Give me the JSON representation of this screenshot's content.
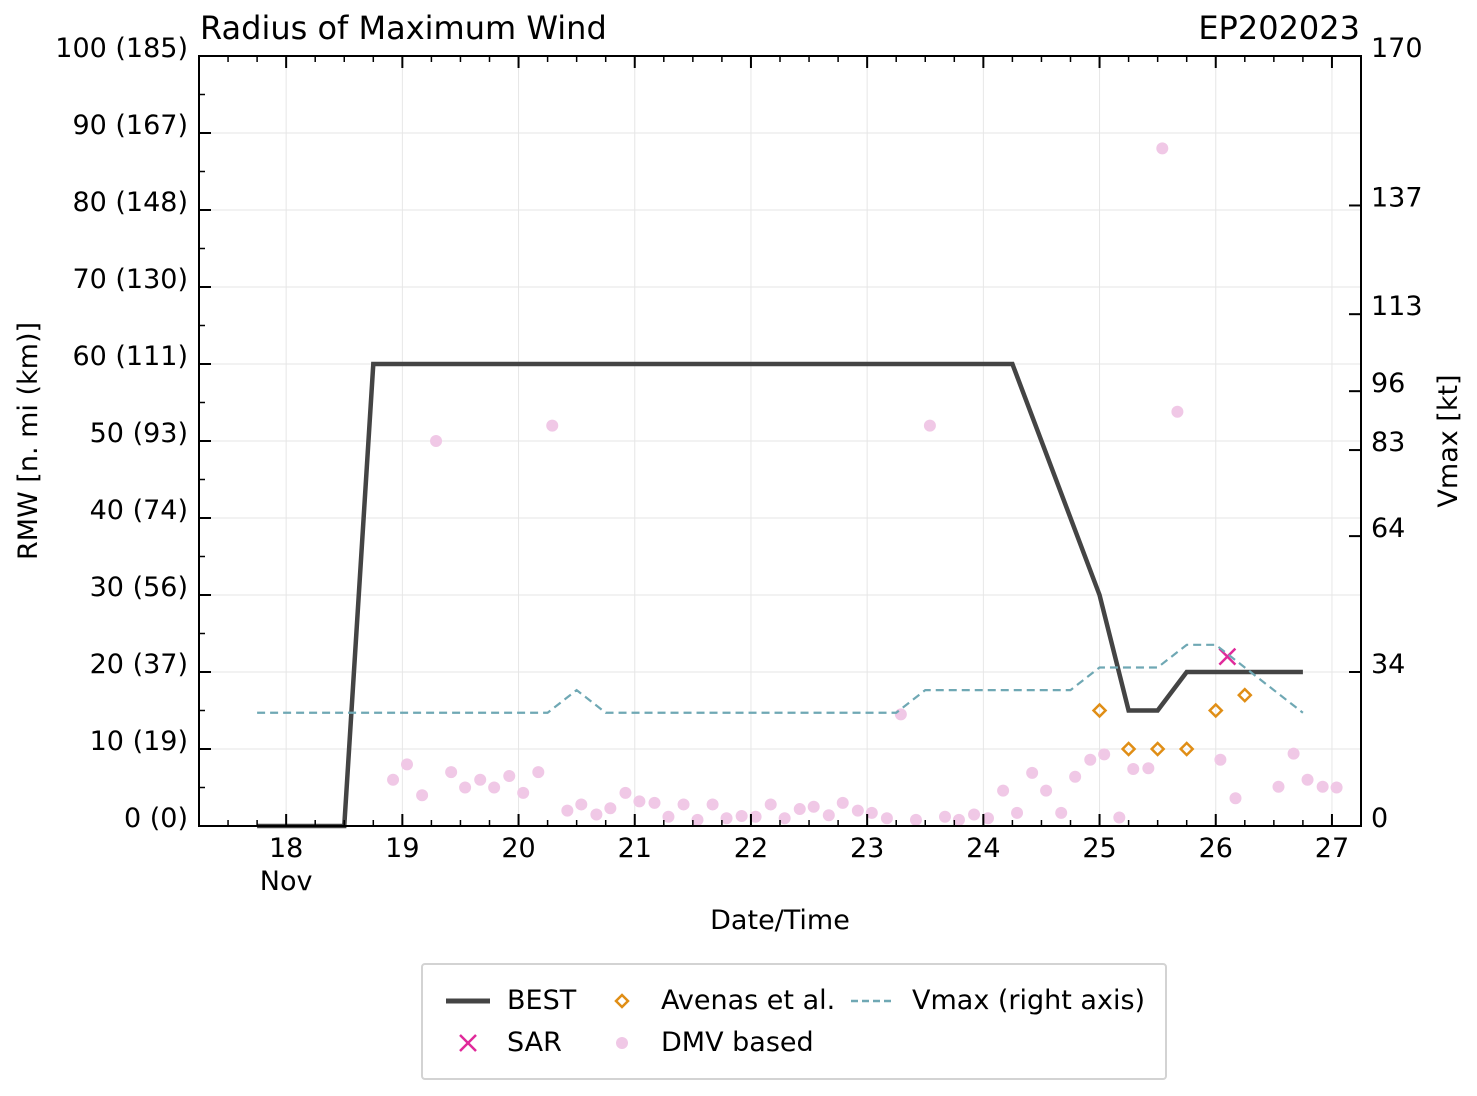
{
  "chart_data": {
    "type": "line",
    "title": "Radius of Maximum Wind",
    "storm_id": "EP202023",
    "xlabel": "Date/Time",
    "ylabel": "RMW [n. mi (km)]",
    "y2label": "Vmax [kt]",
    "x_range": [
      17.25,
      27.25
    ],
    "ylim": [
      0,
      100
    ],
    "x_ticks": [
      18,
      19,
      20,
      21,
      22,
      23,
      24,
      25,
      26,
      27
    ],
    "x_tick_labels": [
      "18",
      "19",
      "20",
      "21",
      "22",
      "23",
      "24",
      "25",
      "26",
      "27"
    ],
    "x_month_label": "Nov",
    "y_ticks": [
      0,
      10,
      20,
      30,
      40,
      50,
      60,
      70,
      80,
      90,
      100
    ],
    "y_tick_labels": [
      "0 (0)",
      "10 (19)",
      "20 (37)",
      "30 (56)",
      "40 (74)",
      "50 (93)",
      "60 (111)",
      "70 (130)",
      "80 (148)",
      "90 (167)",
      "100 (185)"
    ],
    "y2_tick_values": [
      0,
      34,
      64,
      83,
      96,
      113,
      137,
      170
    ],
    "y2_tick_labels": [
      "0",
      "34",
      "64",
      "83",
      "96",
      "113",
      "137",
      "170"
    ],
    "y2_lim": [
      0,
      170
    ],
    "series": [
      {
        "name": "BEST",
        "style": "line",
        "color": "#444444",
        "points": [
          [
            17.75,
            0
          ],
          [
            18.5,
            0
          ],
          [
            18.75,
            60
          ],
          [
            24.25,
            60
          ],
          [
            25.0,
            30
          ],
          [
            25.25,
            15
          ],
          [
            25.5,
            15
          ],
          [
            25.75,
            20
          ],
          [
            26.75,
            20
          ]
        ]
      },
      {
        "name": "SAR",
        "style": "x-marker",
        "color": "#e0299a",
        "points": [
          [
            26.1,
            22
          ]
        ]
      },
      {
        "name": "Avenas et al.",
        "style": "diamond",
        "color": "#e08e16",
        "points": [
          [
            25.0,
            15
          ],
          [
            25.25,
            10
          ],
          [
            25.5,
            10
          ],
          [
            25.75,
            10
          ],
          [
            26.0,
            15
          ],
          [
            26.25,
            17
          ]
        ]
      },
      {
        "name": "DMV based",
        "style": "dot",
        "color": "#f0c8e6",
        "points": [
          [
            18.92,
            6
          ],
          [
            19.04,
            8
          ],
          [
            19.17,
            4
          ],
          [
            19.29,
            50
          ],
          [
            19.42,
            7
          ],
          [
            19.54,
            5
          ],
          [
            19.67,
            6
          ],
          [
            19.79,
            5
          ],
          [
            19.92,
            6.5
          ],
          [
            20.04,
            4.3
          ],
          [
            20.17,
            7
          ],
          [
            20.29,
            52
          ],
          [
            20.42,
            2
          ],
          [
            20.54,
            2.8
          ],
          [
            20.67,
            1.5
          ],
          [
            20.79,
            2.3
          ],
          [
            20.92,
            4.3
          ],
          [
            21.04,
            3.2
          ],
          [
            21.17,
            3
          ],
          [
            21.29,
            1.2
          ],
          [
            21.42,
            2.8
          ],
          [
            21.54,
            0.8
          ],
          [
            21.67,
            2.8
          ],
          [
            21.79,
            1
          ],
          [
            21.92,
            1.3
          ],
          [
            22.04,
            1.2
          ],
          [
            22.17,
            2.8
          ],
          [
            22.29,
            1
          ],
          [
            22.42,
            2.2
          ],
          [
            22.54,
            2.5
          ],
          [
            22.67,
            1.4
          ],
          [
            22.79,
            3
          ],
          [
            22.92,
            2
          ],
          [
            23.04,
            1.7
          ],
          [
            23.17,
            1
          ],
          [
            23.29,
            14.5
          ],
          [
            23.42,
            0.8
          ],
          [
            23.54,
            52
          ],
          [
            23.67,
            1.2
          ],
          [
            23.79,
            0.8
          ],
          [
            23.92,
            1.5
          ],
          [
            24.04,
            1
          ],
          [
            24.17,
            4.6
          ],
          [
            24.29,
            1.7
          ],
          [
            24.42,
            6.9
          ],
          [
            24.54,
            4.6
          ],
          [
            24.67,
            1.7
          ],
          [
            24.79,
            6.4
          ],
          [
            24.92,
            8.6
          ],
          [
            25.04,
            9.3
          ],
          [
            25.17,
            1.1
          ],
          [
            25.29,
            7.4
          ],
          [
            25.42,
            7.5
          ],
          [
            25.54,
            88
          ],
          [
            25.67,
            53.8
          ],
          [
            26.04,
            8.6
          ],
          [
            26.17,
            3.6
          ],
          [
            26.54,
            5.1
          ],
          [
            26.67,
            9.4
          ],
          [
            26.79,
            6
          ],
          [
            26.92,
            5.1
          ],
          [
            27.04,
            5
          ]
        ]
      },
      {
        "name": "Vmax (right axis)",
        "style": "dashed",
        "color": "#6fa8b4",
        "axis": "right",
        "points": [
          [
            17.75,
            25
          ],
          [
            20.25,
            25
          ],
          [
            20.5,
            30
          ],
          [
            20.75,
            25
          ],
          [
            23.25,
            25
          ],
          [
            23.5,
            30
          ],
          [
            24.75,
            30
          ],
          [
            25.0,
            35
          ],
          [
            25.5,
            35
          ],
          [
            25.75,
            40
          ],
          [
            26.0,
            40
          ],
          [
            26.25,
            35
          ],
          [
            26.75,
            25
          ]
        ]
      }
    ],
    "legend": [
      "BEST",
      "Avenas et al.",
      "Vmax (right axis)",
      "SAR",
      "DMV based"
    ],
    "legend_position": "bottom-center",
    "grid": true
  }
}
